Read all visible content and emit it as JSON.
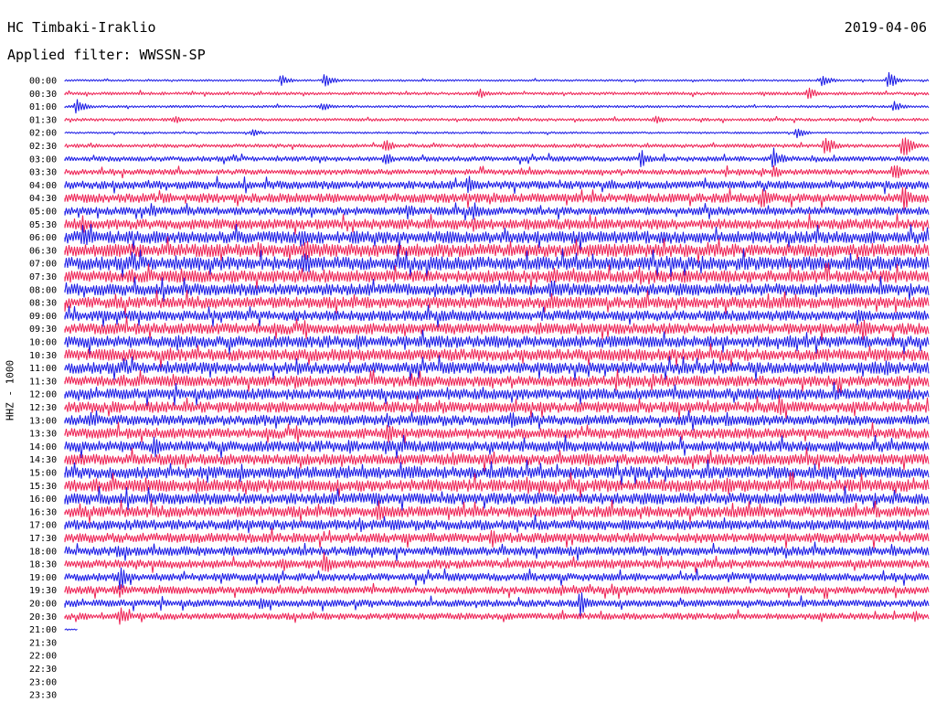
{
  "header": {
    "station": "HC Timbaki-Iraklio",
    "date": "2019-04-06",
    "filter": "Applied filter: WWSSN-SP",
    "channel": "HHZ - 1000"
  },
  "colors": {
    "trace_a": "#1a1ae6",
    "trace_b": "#ee2255",
    "background": "#ffffff",
    "text": "#000000"
  },
  "chart_data": {
    "type": "line",
    "title": "HC Timbaki-Iraklio",
    "ylabel": "HHZ - 1000",
    "xlim": [
      0,
      30
    ],
    "x_unit": "minutes",
    "categories": [
      "00:00",
      "00:30",
      "01:00",
      "01:30",
      "02:00",
      "02:30",
      "03:00",
      "03:30",
      "04:00",
      "04:30",
      "05:00",
      "05:30",
      "06:00",
      "06:30",
      "07:00",
      "07:30",
      "08:00",
      "08:30",
      "09:00",
      "09:30",
      "10:00",
      "10:30",
      "11:00",
      "11:30",
      "12:00",
      "12:30",
      "13:00",
      "13:30",
      "14:00",
      "14:30",
      "15:00",
      "15:30",
      "16:00",
      "16:30",
      "17:00",
      "17:30",
      "18:00",
      "18:30",
      "19:00",
      "19:30",
      "20:00",
      "20:30",
      "21:00",
      "21:30",
      "22:00",
      "22:30",
      "23:00",
      "23:30"
    ],
    "rows_with_data": 43,
    "last_row_fraction": 0.015,
    "noise_levels": [
      0.8,
      1.2,
      1,
      1.2,
      0.8,
      1.5,
      2,
      2.2,
      3.2,
      3.6,
      3.2,
      4,
      4.8,
      5,
      5.2,
      4.8,
      4.6,
      4.4,
      4,
      4.3,
      4.5,
      4.6,
      4.4,
      4.2,
      4.3,
      4.2,
      4,
      4,
      4.2,
      4.2,
      4.6,
      4.8,
      4.4,
      4.2,
      4,
      3.8,
      3.6,
      3.4,
      3,
      3,
      2.8,
      2.6,
      0.6,
      0,
      0,
      0,
      0,
      0
    ],
    "events": [
      {
        "row": 0,
        "x": 7.5,
        "amp": 7
      },
      {
        "row": 0,
        "x": 9.0,
        "amp": 9
      },
      {
        "row": 0,
        "x": 26.3,
        "amp": 8
      },
      {
        "row": 0,
        "x": 28.6,
        "amp": 10
      },
      {
        "row": 1,
        "x": 14.4,
        "amp": 7
      },
      {
        "row": 1,
        "x": 25.8,
        "amp": 9
      },
      {
        "row": 2,
        "x": 0.4,
        "amp": 9
      },
      {
        "row": 2,
        "x": 8.9,
        "amp": 6
      },
      {
        "row": 2,
        "x": 28.8,
        "amp": 7
      },
      {
        "row": 3,
        "x": 3.8,
        "amp": 6
      },
      {
        "row": 3,
        "x": 20.5,
        "amp": 6
      },
      {
        "row": 4,
        "x": 6.5,
        "amp": 6
      },
      {
        "row": 4,
        "x": 25.4,
        "amp": 7
      },
      {
        "row": 5,
        "x": 11.1,
        "amp": 10
      },
      {
        "row": 5,
        "x": 26.4,
        "amp": 14
      },
      {
        "row": 5,
        "x": 29.1,
        "amp": 16
      },
      {
        "row": 6,
        "x": 11.1,
        "amp": 9
      },
      {
        "row": 6,
        "x": 20.0,
        "amp": 11
      },
      {
        "row": 6,
        "x": 24.6,
        "amp": 14
      },
      {
        "row": 7,
        "x": 24.6,
        "amp": 10
      },
      {
        "row": 7,
        "x": 28.8,
        "amp": 12
      },
      {
        "row": 8,
        "x": 14.0,
        "amp": 12
      },
      {
        "row": 8,
        "x": 18.9,
        "amp": 8
      },
      {
        "row": 9,
        "x": 24.2,
        "amp": 14
      },
      {
        "row": 9,
        "x": 29.1,
        "amp": 16
      },
      {
        "row": 10,
        "x": 3.0,
        "amp": 10
      },
      {
        "row": 10,
        "x": 11.9,
        "amp": 10
      },
      {
        "row": 10,
        "x": 14.2,
        "amp": 12
      },
      {
        "row": 11,
        "x": 0.6,
        "amp": 12
      },
      {
        "row": 11,
        "x": 14.2,
        "amp": 10
      },
      {
        "row": 12,
        "x": 0.6,
        "amp": 16
      },
      {
        "row": 12,
        "x": 8.2,
        "amp": 14
      },
      {
        "row": 13,
        "x": 6.7,
        "amp": 12
      },
      {
        "row": 13,
        "x": 8.3,
        "amp": 16
      },
      {
        "row": 14,
        "x": 8.3,
        "amp": 18
      },
      {
        "row": 14,
        "x": 4.6,
        "amp": 10
      },
      {
        "row": 15,
        "x": 17.0,
        "amp": 12
      },
      {
        "row": 15,
        "x": 18.5,
        "amp": 10
      },
      {
        "row": 16,
        "x": 16.9,
        "amp": 14
      },
      {
        "row": 17,
        "x": 16.9,
        "amp": 14
      },
      {
        "row": 17,
        "x": 26.7,
        "amp": 10
      },
      {
        "row": 18,
        "x": 27.5,
        "amp": 12
      },
      {
        "row": 19,
        "x": 27.7,
        "amp": 16
      },
      {
        "row": 20,
        "x": 3.9,
        "amp": 12
      },
      {
        "row": 20,
        "x": 25.2,
        "amp": 10
      },
      {
        "row": 21,
        "x": 3.6,
        "amp": 10
      },
      {
        "row": 21,
        "x": 28.5,
        "amp": 10
      },
      {
        "row": 22,
        "x": 8.1,
        "amp": 10
      },
      {
        "row": 22,
        "x": 28.5,
        "amp": 12
      },
      {
        "row": 23,
        "x": 8.0,
        "amp": 10
      },
      {
        "row": 24,
        "x": 24.6,
        "amp": 10
      },
      {
        "row": 25,
        "x": 24.8,
        "amp": 14
      },
      {
        "row": 26,
        "x": 0.9,
        "amp": 10
      },
      {
        "row": 26,
        "x": 15.5,
        "amp": 12
      },
      {
        "row": 26,
        "x": 23.0,
        "amp": 10
      },
      {
        "row": 27,
        "x": 11.2,
        "amp": 12
      },
      {
        "row": 28,
        "x": 3.1,
        "amp": 14
      },
      {
        "row": 28,
        "x": 11.1,
        "amp": 12
      },
      {
        "row": 28,
        "x": 20.5,
        "amp": 10
      },
      {
        "row": 29,
        "x": 13.5,
        "amp": 10
      },
      {
        "row": 29,
        "x": 18.1,
        "amp": 10
      },
      {
        "row": 30,
        "x": 6.1,
        "amp": 12
      },
      {
        "row": 30,
        "x": 12.1,
        "amp": 10
      },
      {
        "row": 31,
        "x": 4.6,
        "amp": 12
      },
      {
        "row": 31,
        "x": 23.0,
        "amp": 12
      },
      {
        "row": 32,
        "x": 10.8,
        "amp": 10
      },
      {
        "row": 33,
        "x": 10.9,
        "amp": 14
      },
      {
        "row": 34,
        "x": 19.6,
        "amp": 8
      },
      {
        "row": 35,
        "x": 14.8,
        "amp": 14
      },
      {
        "row": 36,
        "x": 1.8,
        "amp": 10
      },
      {
        "row": 36,
        "x": 28.7,
        "amp": 10
      },
      {
        "row": 37,
        "x": 9.0,
        "amp": 14
      },
      {
        "row": 38,
        "x": 1.9,
        "amp": 16
      },
      {
        "row": 38,
        "x": 16.0,
        "amp": 6
      },
      {
        "row": 39,
        "x": 1.9,
        "amp": 10
      },
      {
        "row": 39,
        "x": 19.0,
        "amp": 8
      },
      {
        "row": 40,
        "x": 17.9,
        "amp": 16
      },
      {
        "row": 40,
        "x": 6.8,
        "amp": 10
      },
      {
        "row": 41,
        "x": 1.9,
        "amp": 12
      },
      {
        "row": 41,
        "x": 29.5,
        "amp": 8
      }
    ],
    "grid": false,
    "legend": "none"
  }
}
